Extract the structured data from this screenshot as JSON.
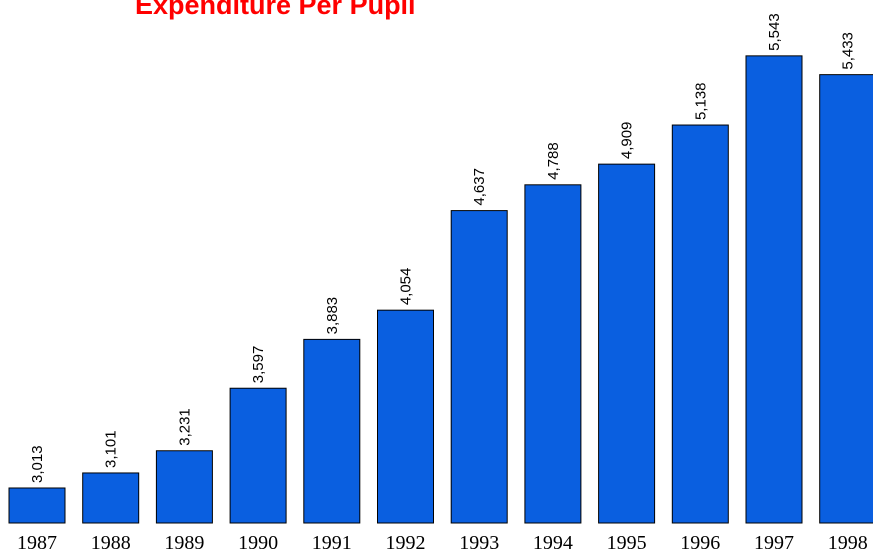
{
  "chart_data": {
    "type": "bar",
    "title": "Expenditure Per Pupil",
    "categories": [
      "1987",
      "1988",
      "1989",
      "1990",
      "1991",
      "1992",
      "1993",
      "1994",
      "1995",
      "1996",
      "1997",
      "1998"
    ],
    "values": [
      3013,
      3101,
      3231,
      3597,
      3883,
      4054,
      4637,
      4788,
      4909,
      5138,
      5543,
      5433
    ],
    "value_labels": [
      "3,013",
      "3,101",
      "3,231",
      "3,597",
      "3,883",
      "4,054",
      "4,637",
      "4,788",
      "4,909",
      "5,138",
      "5,543",
      "5,433"
    ],
    "color": "#0a5fe0",
    "ylim": [
      2808,
      5870
    ]
  }
}
